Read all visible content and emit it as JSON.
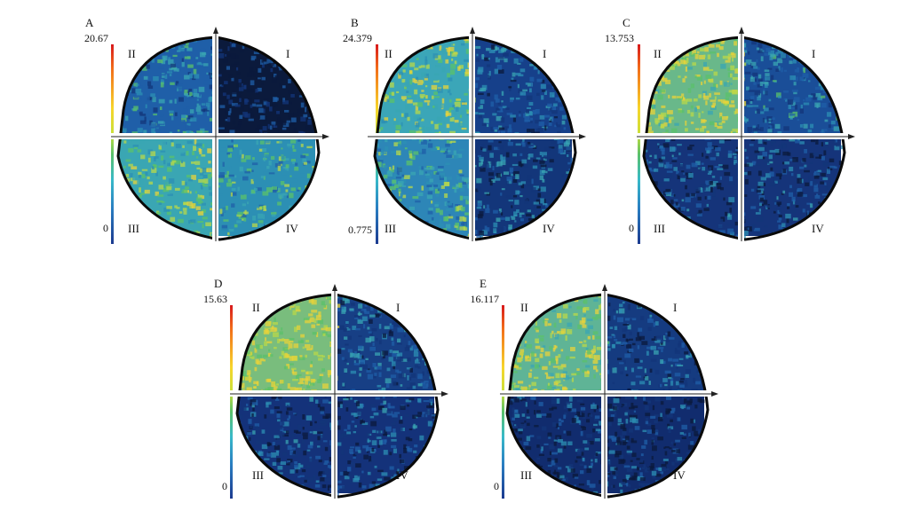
{
  "panels": [
    {
      "label": "A",
      "max": "20.67",
      "min": "0",
      "quadrants": {
        "I": "I",
        "II": "II",
        "III": "III",
        "IV": "IV"
      },
      "intensity": {
        "I": 0.1,
        "II": 0.45,
        "III": 0.65,
        "IV": 0.55
      },
      "colors": {
        "I": "#0b1a3c",
        "II": "#1f5fa8",
        "III": "#3aa6b3",
        "IV": "#2c8fb4"
      }
    },
    {
      "label": "B",
      "max": "24.379",
      "min": "0.775",
      "quadrants": {
        "I": "I",
        "II": "II",
        "III": "III",
        "IV": "IV"
      },
      "intensity": {
        "I": 0.35,
        "II": 0.7,
        "III": 0.55,
        "IV": 0.3
      },
      "colors": {
        "I": "#16408a",
        "II": "#3ba6b8",
        "III": "#2d86b7",
        "IV": "#13367a"
      }
    },
    {
      "label": "C",
      "max": "13.753",
      "min": "0",
      "quadrants": {
        "I": "I",
        "II": "II",
        "III": "III",
        "IV": "IV"
      },
      "intensity": {
        "I": 0.4,
        "II": 0.85,
        "III": 0.25,
        "IV": 0.25
      },
      "colors": {
        "I": "#1a4e98",
        "II": "#69b88a",
        "III": "#15347a",
        "IV": "#15347a"
      }
    },
    {
      "label": "D",
      "max": "15.63",
      "min": "0",
      "quadrants": {
        "I": "I",
        "II": "II",
        "III": "III",
        "IV": "IV"
      },
      "intensity": {
        "I": 0.35,
        "II": 0.9,
        "III": 0.25,
        "IV": 0.25
      },
      "colors": {
        "I": "#173f85",
        "II": "#79bd7d",
        "III": "#14327a",
        "IV": "#14327a"
      }
    },
    {
      "label": "E",
      "max": "16.117",
      "min": "0",
      "quadrants": {
        "I": "I",
        "II": "II",
        "III": "III",
        "IV": "IV"
      },
      "intensity": {
        "I": 0.3,
        "II": 0.85,
        "III": 0.2,
        "IV": 0.2
      },
      "colors": {
        "I": "#153b80",
        "II": "#5fb496",
        "III": "#112c6e",
        "IV": "#112c6e"
      }
    }
  ]
}
